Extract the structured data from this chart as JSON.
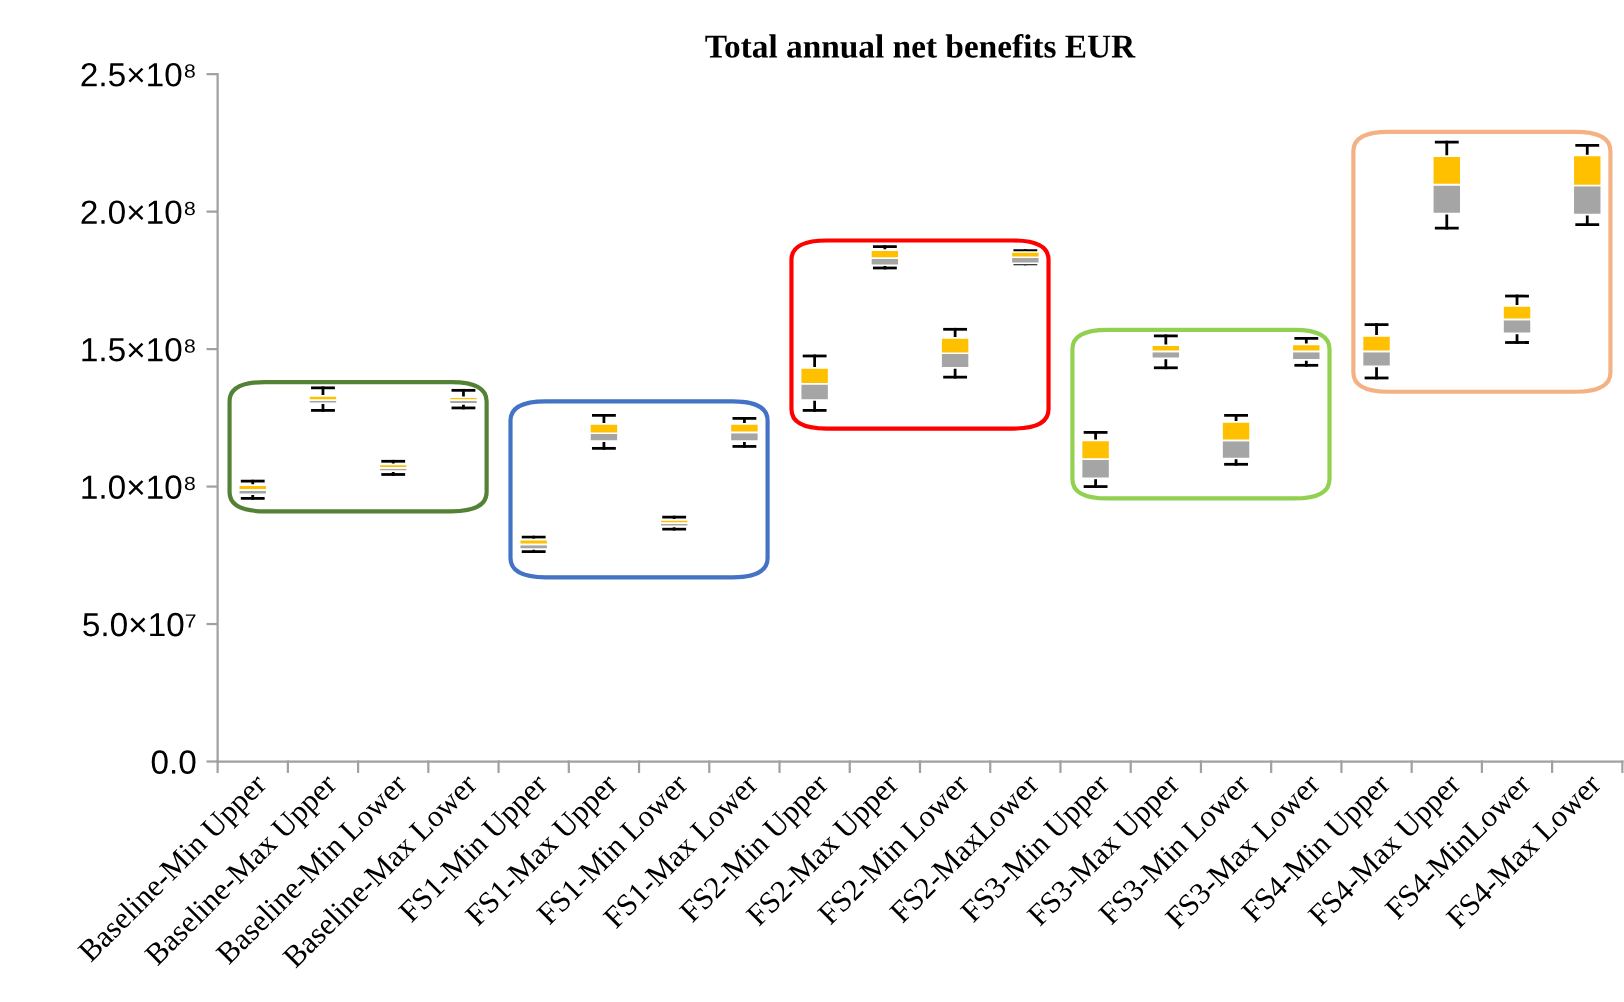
{
  "chart_data": {
    "type": "box",
    "title": "Total annual net benefits EUR",
    "categories": [
      "Baseline-Min Upper",
      "Baseline-Max Upper",
      "Baseline-Min Lower",
      "Baseline-Max Lower",
      "FS1-Min Upper",
      "FS1-Max Upper",
      "FS1-Min Lower",
      "FS1-Max Lower",
      "FS2-Min Upper",
      "FS2-Max Upper",
      "FS2-Min Lower",
      "FS2-MaxLower",
      "FS3-Min Upper",
      "FS3-Max Upper",
      "FS3-Min Lower",
      "FS3-Max Lower",
      "FS4-Min Upper",
      "FS4-Max Upper",
      "FS4-MinLower",
      "FS4-Max Lower"
    ],
    "color": "#a5a5a5",
    "boxes": [
      {
        "low": 95700000.0,
        "q1": 97200000.0,
        "median": 98800000.0,
        "q3": 100500000.0,
        "high": 102000000.0
      },
      {
        "low": 127700000.0,
        "q1": 130300000.0,
        "median": 131500000.0,
        "q3": 133000000.0,
        "high": 135900000.0
      },
      {
        "low": 104400000.0,
        "q1": 105600000.0,
        "median": 106800000.0,
        "q3": 108100000.0,
        "high": 109200000.0
      },
      {
        "low": 128600000.0,
        "q1": 130100000.0,
        "median": 131500000.0,
        "q3": 132500000.0,
        "high": 135000000.0
      },
      {
        "low": 76300000.0,
        "q1": 77300000.0,
        "median": 79000000.0,
        "q3": 80700000.0,
        "high": 81600000.0
      },
      {
        "low": 113900000.0,
        "q1": 116500000.0,
        "median": 119400000.0,
        "q3": 122800000.0,
        "high": 125900000.0
      },
      {
        "low": 84500000.0,
        "q1": 85500000.0,
        "median": 86700000.0,
        "q3": 87900000.0,
        "high": 88900000.0
      },
      {
        "low": 114600000.0,
        "q1": 116500000.0,
        "median": 119700000.0,
        "q3": 122800000.0,
        "high": 124800000.0
      },
      {
        "low": 127700000.0,
        "q1": 131500000.0,
        "median": 137400000.0,
        "q3": 143200000.0,
        "high": 147500000.0
      },
      {
        "low": 179500000.0,
        "q1": 180500000.0,
        "median": 183100000.0,
        "q3": 186000000.0,
        "high": 187300000.0
      },
      {
        "low": 139800000.0,
        "q1": 143200000.0,
        "median": 148500000.0,
        "q3": 154100000.0,
        "high": 157200000.0
      },
      {
        "low": 181000000.0,
        "q1": 181200000.0,
        "median": 183400000.0,
        "q3": 185300000.0,
        "high": 185800000.0
      },
      {
        "low": 100000000.0,
        "q1": 103000000.0,
        "median": 110000000.0,
        "q3": 116800000.0,
        "high": 119700000.0
      },
      {
        "low": 143200000.0,
        "q1": 146600000.0,
        "median": 149200000.0,
        "q3": 151400000.0,
        "high": 154800000.0
      },
      {
        "low": 108100000.0,
        "q1": 110200000.0,
        "median": 116800000.0,
        "q3": 123500000.0,
        "high": 125900000.0
      },
      {
        "low": 144100000.0,
        "q1": 146100000.0,
        "median": 149200000.0,
        "q3": 151700000.0,
        "high": 153900000.0
      },
      {
        "low": 139500000.0,
        "q1": 143700000.0,
        "median": 149200000.0,
        "q3": 154800000.0,
        "high": 158900000.0
      },
      {
        "low": 194000000.0,
        "q1": 199300000.0,
        "median": 209800000.0,
        "q3": 220200000.0,
        "high": 225300000.0
      },
      {
        "low": 152400000.0,
        "q1": 155700000.0,
        "median": 160800000.0,
        "q3": 165700000.0,
        "high": 169300000.0
      },
      {
        "low": 195300000.0,
        "q1": 198900000.0,
        "median": 209500000.0,
        "q3": 220400000.0,
        "high": 224100000.0
      }
    ],
    "ylim": [
      0,
      250000000
    ],
    "yticks": [
      {
        "value": 0,
        "label": "0.0"
      },
      {
        "value": 50000000,
        "label": "5.0×10⁷"
      },
      {
        "value": 100000000,
        "label": "1.0×10⁸"
      },
      {
        "value": 150000000,
        "label": "1.5×10⁸"
      },
      {
        "value": 200000000,
        "label": "2.0×10⁸"
      },
      {
        "value": 250000000,
        "label": "2.5×10⁸"
      }
    ],
    "grid": false,
    "legend": false
  }
}
